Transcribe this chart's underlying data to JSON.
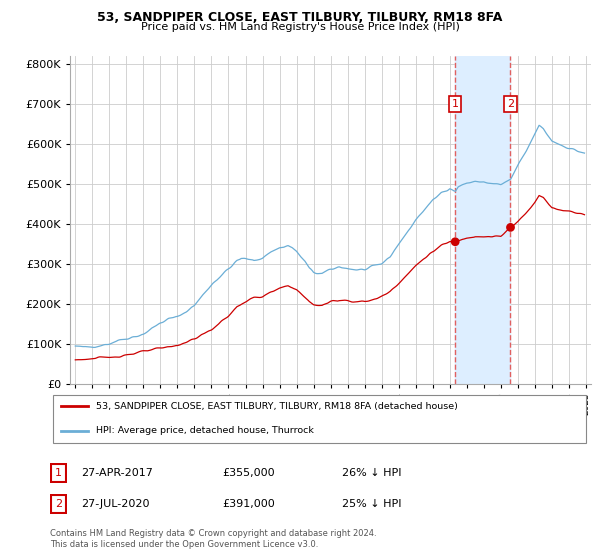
{
  "title": "53, SANDPIPER CLOSE, EAST TILBURY, TILBURY, RM18 8FA",
  "subtitle": "Price paid vs. HM Land Registry's House Price Index (HPI)",
  "background_color": "#ffffff",
  "grid_color": "#cccccc",
  "hpi_color": "#6baed6",
  "price_color": "#cc0000",
  "shade_color": "#ddeeff",
  "vline_color": "#e06060",
  "annotation1": {
    "label": "1",
    "date": "27-APR-2017",
    "price": 355000,
    "x_year": 2017.32
  },
  "annotation2": {
    "label": "2",
    "date": "27-JUL-2020",
    "price": 391000,
    "x_year": 2020.57
  },
  "legend_line1": "53, SANDPIPER CLOSE, EAST TILBURY, TILBURY, RM18 8FA (detached house)",
  "legend_line2": "HPI: Average price, detached house, Thurrock",
  "footer1": "Contains HM Land Registry data © Crown copyright and database right 2024.",
  "footer2": "This data is licensed under the Open Government Licence v3.0.",
  "table_row1": [
    "1",
    "27-APR-2017",
    "£355,000",
    "26% ↓ HPI"
  ],
  "table_row2": [
    "2",
    "27-JUL-2020",
    "£391,000",
    "25% ↓ HPI"
  ],
  "ylim": [
    0,
    820000
  ],
  "yticks": [
    0,
    100000,
    200000,
    300000,
    400000,
    500000,
    600000,
    700000,
    800000
  ],
  "xlim_start": 1994.7,
  "xlim_end": 2025.3
}
